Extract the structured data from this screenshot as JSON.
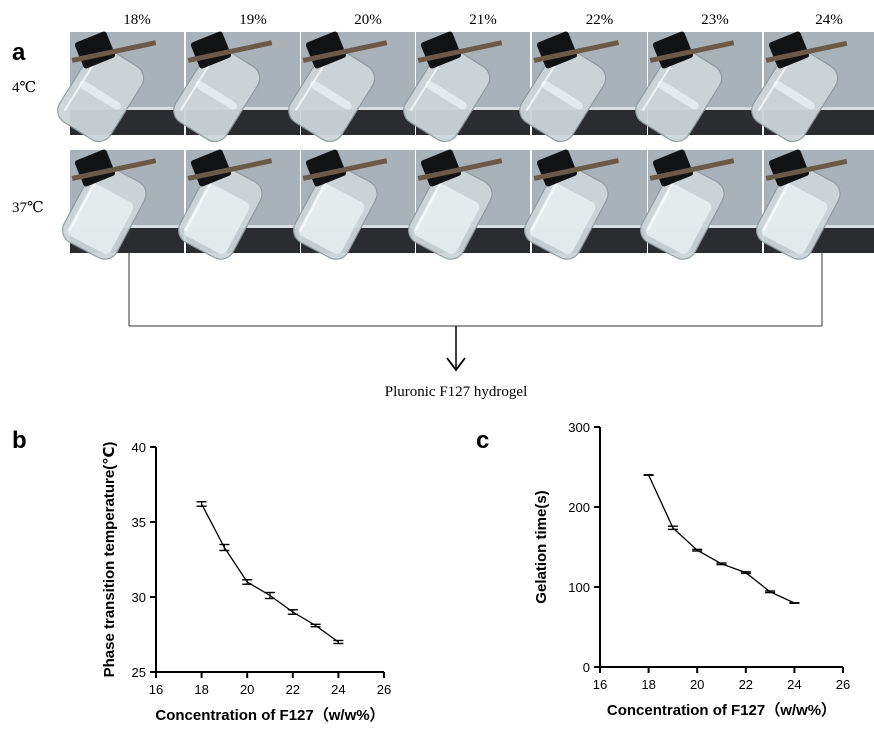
{
  "panel_a": {
    "label": "a",
    "concentrations": [
      "18%",
      "19%",
      "20%",
      "21%",
      "22%",
      "23%",
      "24%"
    ],
    "rows": [
      {
        "label": "4℃"
      },
      {
        "label": "37℃"
      }
    ],
    "arrow_label": "Pluronic F127 hydrogel",
    "colors": {
      "background": "#a9b2b9",
      "ledge": "#2a2c2f",
      "glass": "#cdd5d9",
      "cap": "#111214",
      "rod": "#6b5a48"
    },
    "icons": [
      "vial-photo",
      "down-arrow-icon"
    ]
  },
  "chart_data": [
    {
      "type": "line",
      "panel_label": "b",
      "title": "",
      "xlabel": "Concentration of F127（w/w%）",
      "ylabel": "Phase transition temperature(℃)",
      "xlim": [
        16,
        26
      ],
      "ylim": [
        25,
        40
      ],
      "xticks": [
        "16",
        "18",
        "20",
        "22",
        "24",
        "26"
      ],
      "yticks": [
        "25",
        "30",
        "35",
        "40"
      ],
      "x": [
        18,
        19,
        20,
        21,
        22,
        23,
        24
      ],
      "y": [
        36.2,
        33.3,
        31.0,
        30.1,
        29.0,
        28.1,
        27.0
      ],
      "error": [
        0.15,
        0.2,
        0.15,
        0.2,
        0.15,
        0.08,
        0.1
      ],
      "grid": false,
      "color": "#000000"
    },
    {
      "type": "line",
      "panel_label": "c",
      "title": "",
      "xlabel": "Concentration of F127（w/w%）",
      "ylabel": "Gelation time(s)",
      "xlim": [
        16,
        26
      ],
      "ylim": [
        0,
        300
      ],
      "xticks": [
        "16",
        "18",
        "20",
        "22",
        "24",
        "26"
      ],
      "yticks": [
        "0",
        "100",
        "200",
        "300"
      ],
      "x": [
        18,
        19,
        20,
        21,
        22,
        23,
        24
      ],
      "y": [
        240,
        174,
        146,
        129,
        118,
        94,
        80
      ],
      "error": [
        0,
        2,
        1,
        1,
        1,
        1,
        0
      ],
      "grid": false,
      "color": "#000000"
    }
  ]
}
